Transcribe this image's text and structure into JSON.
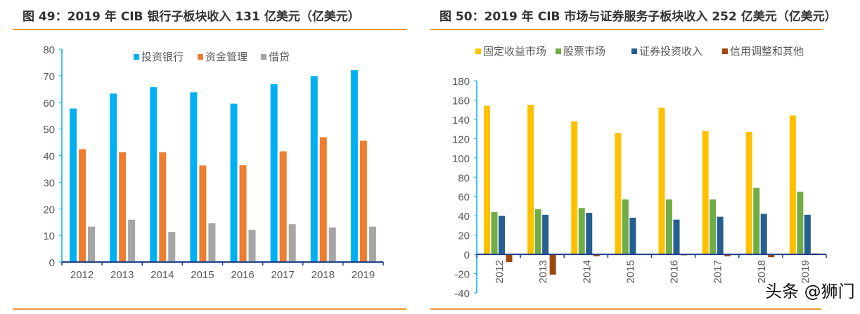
{
  "chart_data": [
    {
      "type": "bar",
      "title": "图 49：2019 年 CIB 银行子板块收入 131 亿美元（亿美元）",
      "categories": [
        "2012",
        "2013",
        "2014",
        "2015",
        "2016",
        "2017",
        "2018",
        "2019"
      ],
      "ylim": [
        0,
        80
      ],
      "yticks": [
        0,
        10,
        20,
        30,
        40,
        50,
        60,
        70,
        80
      ],
      "legend_position": "top-center",
      "grid": false,
      "series": [
        {
          "name": "投资银行",
          "color": "#00b0f0",
          "values": [
            57.7,
            63.3,
            65.7,
            63.8,
            59.5,
            66.9,
            69.9,
            72.1
          ]
        },
        {
          "name": "资金管理",
          "color": "#ed7d31",
          "values": [
            42.4,
            41.3,
            41.3,
            36.3,
            36.4,
            41.6,
            46.9,
            45.6
          ]
        },
        {
          "name": "借贷",
          "color": "#a5a5a5",
          "values": [
            13.3,
            15.9,
            11.3,
            14.6,
            12.1,
            14.2,
            13.0,
            13.3
          ]
        }
      ]
    },
    {
      "type": "bar",
      "title": "图 50：2019 年 CIB 市场与证券服务子板块收入 252 亿美元（亿美元）",
      "categories": [
        "2012",
        "2013",
        "2014",
        "2015",
        "2016",
        "2017",
        "2018",
        "2019"
      ],
      "ylim": [
        -40,
        180
      ],
      "yticks": [
        -40,
        -20,
        0,
        20,
        40,
        60,
        80,
        100,
        120,
        140,
        160,
        180
      ],
      "legend_position": "top",
      "grid": false,
      "series": [
        {
          "name": "固定收益市场",
          "color": "#ffc000",
          "values": [
            154,
            155,
            138,
            126,
            152,
            128,
            127,
            144
          ]
        },
        {
          "name": "股票市场",
          "color": "#70ad47",
          "values": [
            44,
            47,
            48,
            57,
            57,
            57,
            69,
            65
          ]
        },
        {
          "name": "证券投资收入",
          "color": "#255e91",
          "values": [
            40,
            41,
            43,
            38,
            36,
            39,
            42,
            41
          ]
        },
        {
          "name": "信用调整和其他",
          "color": "#9e480e",
          "values": [
            -8,
            -21,
            -2,
            0,
            -1,
            -2,
            -3,
            1
          ]
        }
      ]
    }
  ],
  "watermark": "头条 @狮门"
}
